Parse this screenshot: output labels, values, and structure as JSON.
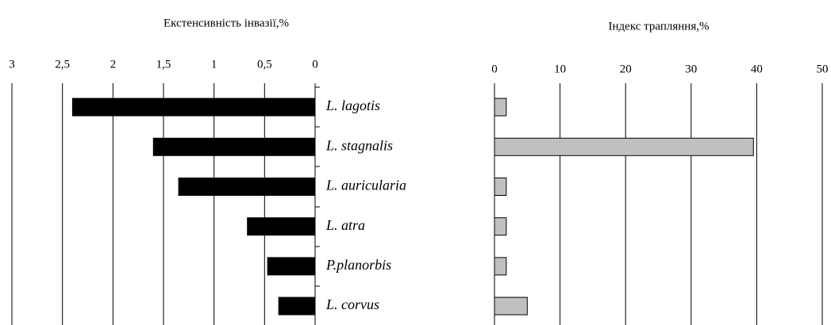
{
  "chart_data": [
    {
      "type": "bar",
      "orientation": "horizontal",
      "title": "Екстенсивність інвазії,%",
      "categories": [
        "L. lagotis",
        "L. stagnalis",
        "L. auricularia",
        "L. atra",
        "P.planorbis",
        "L. corvus"
      ],
      "values": [
        2.4,
        1.6,
        1.35,
        0.67,
        0.47,
        0.36
      ],
      "color": "#000000",
      "xlim": [
        3,
        0
      ],
      "xticks": [
        3,
        {
          "value": 2.5,
          "label": "2,5"
        },
        2,
        {
          "value": 1.5,
          "label": "1,5"
        },
        1,
        {
          "value": 0.5,
          "label": "0,5"
        },
        0
      ],
      "grid": true
    },
    {
      "type": "bar",
      "orientation": "horizontal",
      "title": "Індекс трапляння,%",
      "values": [
        1.8,
        39.5,
        1.8,
        1.8,
        1.8,
        5.0
      ],
      "color": "#c0c0c0",
      "xlim": [
        0,
        50
      ],
      "xticks": [
        0,
        10,
        20,
        30,
        40,
        50
      ],
      "grid": true
    }
  ]
}
